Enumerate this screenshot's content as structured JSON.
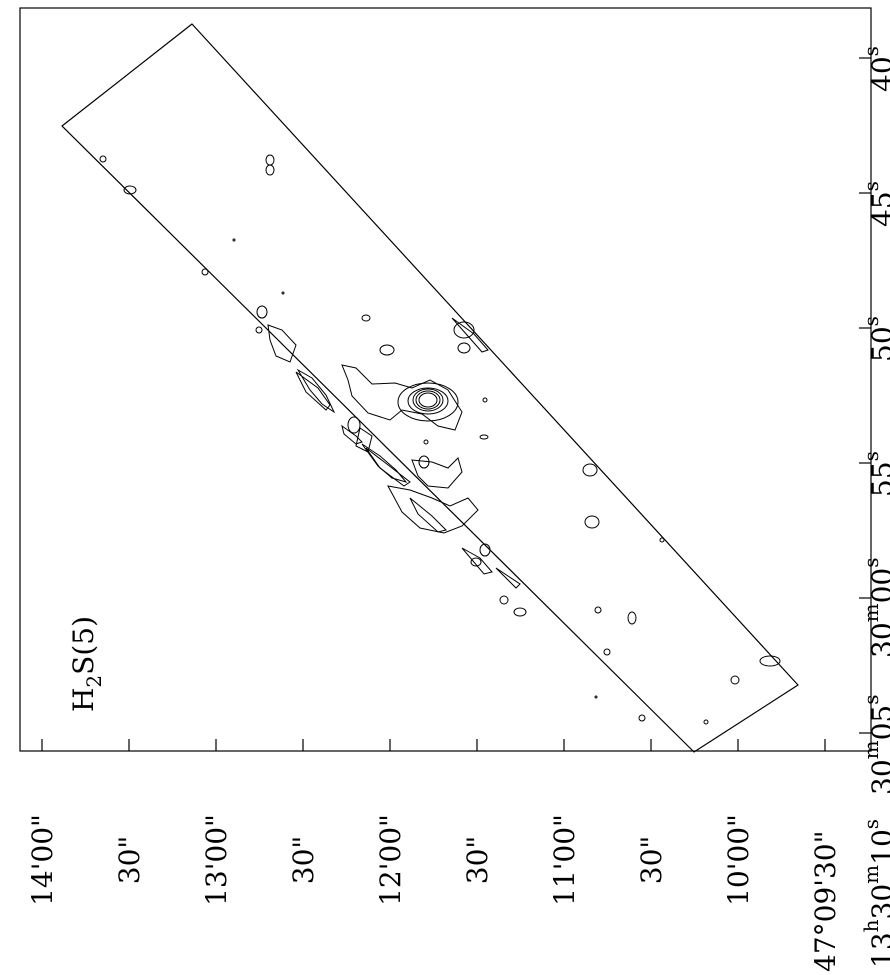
{
  "panel_label": {
    "main": "H",
    "sub": "2",
    "rest": "S(5)"
  },
  "ra_ticks": [
    {
      "base": "40",
      "sup": "s"
    },
    {
      "base": "45",
      "sup": "s"
    },
    {
      "base": "50",
      "sup": "s"
    },
    {
      "base": "55",
      "sup": "s"
    },
    {
      "base": "30",
      "sup": "m",
      "base2": "00",
      "sup2": "s"
    },
    {
      "base": "30",
      "sup": "m",
      "base2": "05",
      "sup2": "s"
    },
    {
      "base": "13",
      "sup": "h",
      "base2": "30",
      "sup2": "m",
      "base3": "10",
      "sup3": "s",
      "text": "13h30m10s"
    }
  ],
  "dec_ticks": [
    "14'00\"",
    "30\"",
    "13'00\"",
    "30\"",
    "12'00\"",
    "30\"",
    "11'00\"",
    "30\"",
    "10'00\"",
    "47°09'30\""
  ],
  "colors": {
    "line": "#000000",
    "background": "#ffffff"
  }
}
